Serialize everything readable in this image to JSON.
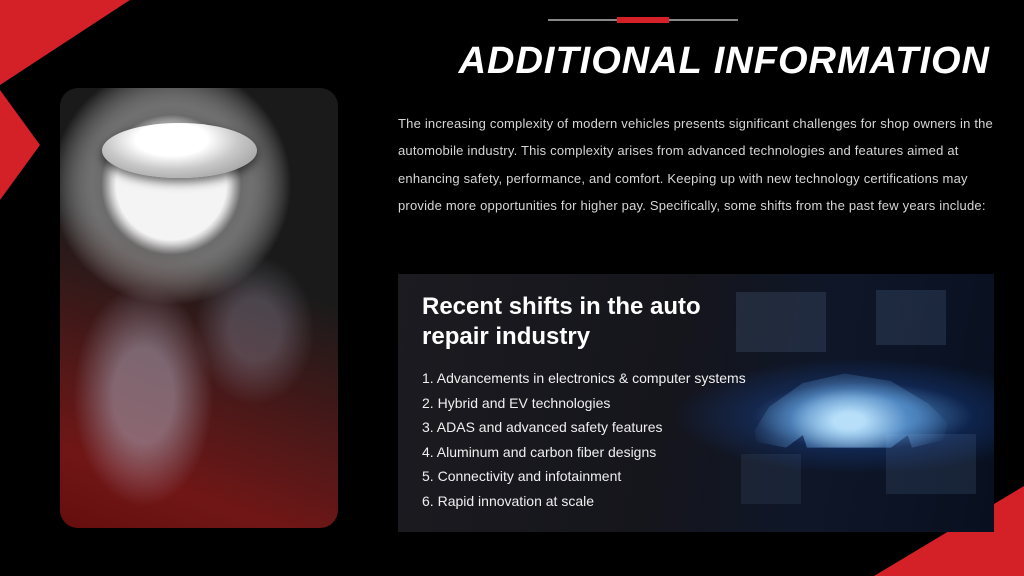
{
  "colors": {
    "background": "#000000",
    "accent": "#d32127",
    "text_body": "#d6d6d6",
    "text_heading": "#ffffff",
    "panel_glow": "#5aaaff"
  },
  "heading": "ADDITIONAL INFORMATION",
  "intro": "The increasing complexity of modern vehicles presents significant challenges for shop owners in the automobile industry. This complexity arises from advanced technologies and features aimed at enhancing safety, performance, and comfort.  Keeping up with new technology certifications may provide more opportunities for higher pay. Specifically, some shifts from the past few years include:",
  "panel": {
    "title": "Recent shifts in the auto repair industry",
    "items": [
      "Advancements in electronics & computer systems",
      "Hybrid and EV technologies",
      "ADAS and advanced safety features",
      "Aluminum and carbon fiber designs",
      "Connectivity and infotainment",
      "Rapid innovation at scale"
    ]
  },
  "typography": {
    "heading_fontsize": 38,
    "heading_style": "italic bold",
    "body_fontsize": 13,
    "panel_title_fontsize": 24,
    "panel_item_fontsize": 14
  }
}
